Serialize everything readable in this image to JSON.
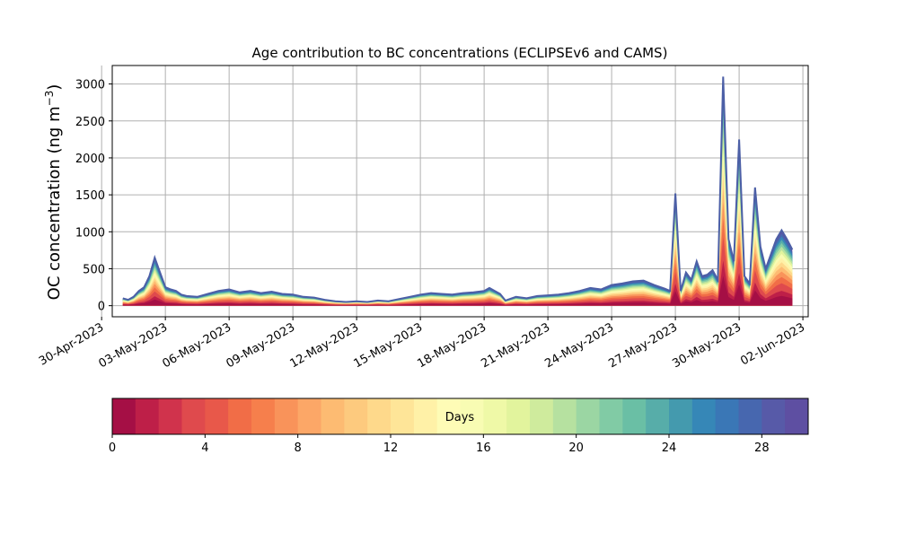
{
  "chart_data": {
    "type": "area",
    "title": "Age contribution to BC concentrations (ECLIPSEv6 and CAMS)",
    "ylabel": "OC concentration (ng m",
    "ylabel_sup": "−3",
    "ylabel_close": ")",
    "xlabel": "",
    "ylim": [
      -150,
      3250
    ],
    "xlim": [
      "2023-04-30T12:00",
      "2023-06-02T06:00"
    ],
    "grid": true,
    "yticks": [
      0,
      500,
      1000,
      1500,
      2000,
      2500,
      3000
    ],
    "xticks": [
      "2023-04-30",
      "2023-05-03",
      "2023-05-06",
      "2023-05-09",
      "2023-05-12",
      "2023-05-15",
      "2023-05-18",
      "2023-05-21",
      "2023-05-24",
      "2023-05-27",
      "2023-05-30",
      "2023-06-02"
    ],
    "xtick_labels": [
      "30-Apr-2023",
      "03-May-2023",
      "06-May-2023",
      "09-May-2023",
      "12-May-2023",
      "15-May-2023",
      "18-May-2023",
      "21-May-2023",
      "24-May-2023",
      "27-May-2023",
      "30-May-2023",
      "02-Jun-2023"
    ],
    "stacking": "cumulative contribution by age in days (0 to 30)",
    "age_bands": [
      {
        "from": 0,
        "to": 1
      },
      {
        "from": 1,
        "to": 2
      },
      {
        "from": 2,
        "to": 4
      },
      {
        "from": 4,
        "to": 6
      },
      {
        "from": 6,
        "to": 8
      },
      {
        "from": 8,
        "to": 10
      },
      {
        "from": 10,
        "to": 12
      },
      {
        "from": 12,
        "to": 14
      },
      {
        "from": 14,
        "to": 16
      },
      {
        "from": 16,
        "to": 18
      },
      {
        "from": 18,
        "to": 20
      },
      {
        "from": 20,
        "to": 22
      },
      {
        "from": 22,
        "to": 24
      },
      {
        "from": 24,
        "to": 26
      },
      {
        "from": 26,
        "to": 28
      },
      {
        "from": 28,
        "to": 30
      }
    ],
    "series_total": {
      "x": [
        "2023-05-01T00:00",
        "2023-05-01T06:00",
        "2023-05-01T12:00",
        "2023-05-01T18:00",
        "2023-05-02T00:00",
        "2023-05-02T06:00",
        "2023-05-02T12:00",
        "2023-05-02T18:00",
        "2023-05-03T00:00",
        "2023-05-03T06:00",
        "2023-05-03T12:00",
        "2023-05-03T18:00",
        "2023-05-04T00:00",
        "2023-05-04T12:00",
        "2023-05-05T00:00",
        "2023-05-05T12:00",
        "2023-05-06T00:00",
        "2023-05-06T12:00",
        "2023-05-07T00:00",
        "2023-05-07T12:00",
        "2023-05-08T00:00",
        "2023-05-08T12:00",
        "2023-05-09T00:00",
        "2023-05-09T12:00",
        "2023-05-10T00:00",
        "2023-05-10T12:00",
        "2023-05-11T00:00",
        "2023-05-11T12:00",
        "2023-05-12T00:00",
        "2023-05-12T12:00",
        "2023-05-13T00:00",
        "2023-05-13T12:00",
        "2023-05-14T00:00",
        "2023-05-14T12:00",
        "2023-05-15T00:00",
        "2023-05-15T12:00",
        "2023-05-16T00:00",
        "2023-05-16T12:00",
        "2023-05-17T00:00",
        "2023-05-17T12:00",
        "2023-05-18T00:00",
        "2023-05-18T06:00",
        "2023-05-18T12:00",
        "2023-05-18T18:00",
        "2023-05-19T00:00",
        "2023-05-19T12:00",
        "2023-05-20T00:00",
        "2023-05-20T12:00",
        "2023-05-21T00:00",
        "2023-05-21T12:00",
        "2023-05-22T00:00",
        "2023-05-22T12:00",
        "2023-05-23T00:00",
        "2023-05-23T12:00",
        "2023-05-24T00:00",
        "2023-05-24T12:00",
        "2023-05-25T00:00",
        "2023-05-25T12:00",
        "2023-05-26T00:00",
        "2023-05-26T12:00",
        "2023-05-26T18:00",
        "2023-05-27T00:00",
        "2023-05-27T06:00",
        "2023-05-27T12:00",
        "2023-05-27T18:00",
        "2023-05-28T00:00",
        "2023-05-28T06:00",
        "2023-05-28T12:00",
        "2023-05-28T18:00",
        "2023-05-29T00:00",
        "2023-05-29T06:00",
        "2023-05-29T12:00",
        "2023-05-29T18:00",
        "2023-05-30T00:00",
        "2023-05-30T06:00",
        "2023-05-30T12:00",
        "2023-05-30T18:00",
        "2023-05-31T00:00",
        "2023-05-31T06:00",
        "2023-05-31T12:00",
        "2023-05-31T18:00",
        "2023-06-01T00:00",
        "2023-06-01T06:00",
        "2023-06-01T12:00"
      ],
      "values": [
        100,
        80,
        120,
        200,
        250,
        400,
        650,
        450,
        250,
        220,
        200,
        150,
        130,
        120,
        160,
        200,
        220,
        180,
        200,
        170,
        190,
        160,
        150,
        120,
        110,
        80,
        60,
        50,
        60,
        50,
        70,
        60,
        90,
        120,
        150,
        170,
        160,
        150,
        170,
        180,
        200,
        240,
        200,
        160,
        70,
        120,
        100,
        130,
        140,
        150,
        170,
        200,
        240,
        220,
        280,
        300,
        330,
        340,
        280,
        230,
        200,
        1520,
        200,
        450,
        350,
        600,
        400,
        420,
        480,
        350,
        3100,
        900,
        600,
        2250,
        400,
        300,
        1600,
        800,
        500,
        700,
        900,
        1020,
        900,
        760
      ]
    },
    "colorbar": {
      "label": "Days",
      "min": 0,
      "max": 30,
      "ticks": [
        0,
        4,
        8,
        12,
        16,
        20,
        24,
        28
      ],
      "colors": [
        "#a50f45",
        "#be1f48",
        "#d0334c",
        "#df4a4d",
        "#e8584a",
        "#f16d47",
        "#f67f4c",
        "#f9935a",
        "#fca767",
        "#fdbb72",
        "#fdca7e",
        "#fed98b",
        "#fee598",
        "#fff1a7",
        "#fefcb6",
        "#f8fcb3",
        "#eff9a7",
        "#e2f49d",
        "#cfeb9d",
        "#b6e1a0",
        "#9bd6a3",
        "#81cba5",
        "#6abfa5",
        "#57ada9",
        "#449aae",
        "#3687b7",
        "#3a77b6",
        "#4767af",
        "#575aa8",
        "#5e4fa2"
      ]
    }
  }
}
